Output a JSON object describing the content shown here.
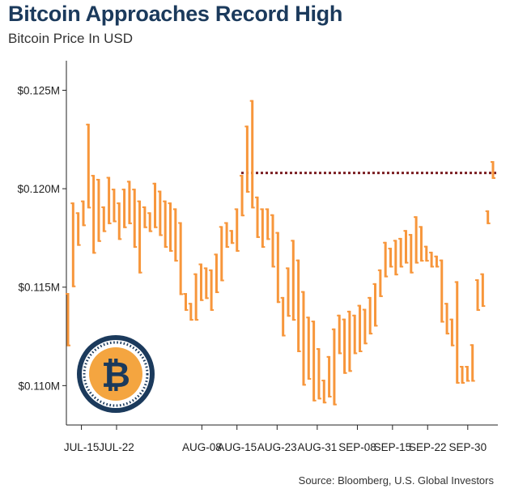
{
  "header": {
    "title": "Bitcoin Approaches Record High",
    "subtitle": "Bitcoin Price In USD"
  },
  "footer": {
    "source": "Source: Bloomberg, U.S. Global Investors"
  },
  "colors": {
    "bar": "#f7963b",
    "reference_line": "#7b1e22",
    "title": "#1b3a5c",
    "coin_ring": "#1b3a5c",
    "coin_face": "#f4a540"
  },
  "icons": {
    "logo": "bitcoin-coin-icon"
  },
  "chart_data": {
    "type": "ohlc",
    "title": "Bitcoin Approaches Record High",
    "subtitle": "Bitcoin Price In USD",
    "xlabel": "",
    "ylabel": "",
    "ylim": [
      0.108,
      0.1265
    ],
    "y_ticks": [
      {
        "value": 0.125,
        "label": "$0.125M"
      },
      {
        "value": 0.12,
        "label": "$0.120M"
      },
      {
        "value": 0.115,
        "label": "$0.115M"
      },
      {
        "value": 0.11,
        "label": "$0.110M"
      }
    ],
    "x_ticks": [
      {
        "date": "2025-07-15",
        "label": "JUL-15"
      },
      {
        "date": "2025-07-22",
        "label": "JUL-22"
      },
      {
        "date": "2025-08-08",
        "label": "AUG-08"
      },
      {
        "date": "2025-08-15",
        "label": "AUG-15"
      },
      {
        "date": "2025-08-23",
        "label": "AUG-23"
      },
      {
        "date": "2025-08-31",
        "label": "AUG-31"
      },
      {
        "date": "2025-09-08",
        "label": "SEP-08"
      },
      {
        "date": "2025-09-15",
        "label": "SEP-15"
      },
      {
        "date": "2025-09-22",
        "label": "SEP-22"
      },
      {
        "date": "2025-09-30",
        "label": "SEP-30"
      }
    ],
    "reference_line": {
      "value": 0.1208,
      "style": "dotted"
    },
    "grid": false,
    "legend": "none",
    "series": [
      {
        "values": [
          [
            0.1147,
            0.112
          ],
          [
            0.1193,
            0.115
          ],
          [
            0.1188,
            0.1171
          ],
          [
            0.1194,
            0.1181
          ],
          [
            0.1233,
            0.119
          ],
          [
            0.1207,
            0.1167
          ],
          [
            0.1205,
            0.1173
          ],
          [
            0.1191,
            0.1178
          ],
          [
            0.1206,
            0.1182
          ],
          [
            0.12,
            0.1183
          ],
          [
            0.1193,
            0.1174
          ],
          [
            0.12,
            0.118
          ],
          [
            0.1204,
            0.1182
          ],
          [
            0.12,
            0.117
          ],
          [
            0.1194,
            0.1157
          ],
          [
            0.1191,
            0.118
          ],
          [
            0.1188,
            0.1178
          ],
          [
            0.1203,
            0.118
          ],
          [
            0.1199,
            0.1176
          ],
          [
            0.1194,
            0.117
          ],
          [
            0.1193,
            0.1168
          ],
          [
            0.119,
            0.1163
          ],
          [
            0.1183,
            0.1146
          ],
          [
            0.1147,
            0.1138
          ],
          [
            0.1142,
            0.1133
          ],
          [
            0.1157,
            0.1133
          ],
          [
            0.1162,
            0.1143
          ],
          [
            0.116,
            0.1144
          ],
          [
            0.1159,
            0.1138
          ],
          [
            0.1167,
            0.1147
          ],
          [
            0.1181,
            0.1153
          ],
          [
            0.1183,
            0.117
          ],
          [
            0.1179,
            0.1172
          ],
          [
            0.119,
            0.1168
          ],
          [
            0.1207,
            0.1186
          ],
          [
            0.1232,
            0.1198
          ],
          [
            0.1245,
            0.119
          ],
          [
            0.1196,
            0.1175
          ],
          [
            0.119,
            0.117
          ],
          [
            0.119,
            0.1174
          ],
          [
            0.1187,
            0.116
          ],
          [
            0.1178,
            0.1142
          ],
          [
            0.1145,
            0.1125
          ],
          [
            0.116,
            0.1135
          ],
          [
            0.1174,
            0.1133
          ],
          [
            0.1164,
            0.1117
          ],
          [
            0.1148,
            0.11
          ],
          [
            0.1135,
            0.1103
          ],
          [
            0.1133,
            0.1092
          ],
          [
            0.1119,
            0.1093
          ],
          [
            0.1103,
            0.1091
          ],
          [
            0.1115,
            0.1094
          ],
          [
            0.1129,
            0.109
          ],
          [
            0.1136,
            0.1116
          ],
          [
            0.1134,
            0.1106
          ],
          [
            0.1138,
            0.1107
          ],
          [
            0.1136,
            0.1116
          ],
          [
            0.1141,
            0.1117
          ],
          [
            0.1139,
            0.1121
          ],
          [
            0.1145,
            0.1126
          ],
          [
            0.1152,
            0.113
          ],
          [
            0.1159,
            0.1145
          ],
          [
            0.1173,
            0.1155
          ],
          [
            0.117,
            0.116
          ],
          [
            0.1174,
            0.1156
          ],
          [
            0.1175,
            0.116
          ],
          [
            0.1179,
            0.1162
          ],
          [
            0.1177,
            0.1157
          ],
          [
            0.1186,
            0.1162
          ],
          [
            0.1181,
            0.1163
          ],
          [
            0.1171,
            0.1163
          ],
          [
            0.1168,
            0.116
          ],
          [
            0.1166,
            0.116
          ],
          [
            0.1164,
            0.1132
          ],
          [
            0.1142,
            0.1126
          ],
          [
            0.1134,
            0.112
          ],
          [
            0.1153,
            0.1101
          ],
          [
            0.111,
            0.1101
          ],
          [
            0.111,
            0.1102
          ],
          [
            0.1121,
            0.1102
          ],
          [
            0.1154,
            0.1138
          ],
          [
            0.1157,
            0.114
          ],
          [
            0.1189,
            0.1182
          ],
          [
            0.1214,
            0.1205
          ]
        ]
      }
    ]
  }
}
